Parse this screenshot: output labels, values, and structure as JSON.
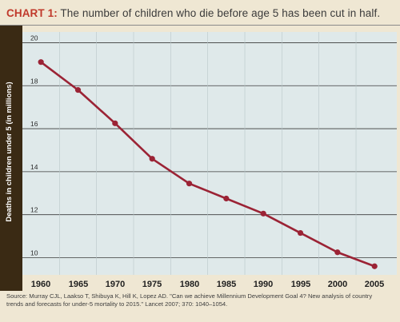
{
  "title": {
    "lead": "CHART 1:",
    "text": "The number of children who die before age 5 has been cut in half."
  },
  "source": "Source: Murray CJL, Laakso T, Shibuya K, Hill K, Lopez AD. \"Can we achieve Millennium Development Goal 4? New analysis of country trends and forecasts for under-5 mortality to 2015.\" Lancet 2007; 370: 1040–1054.",
  "colors": {
    "background": "#efe7d3",
    "plot_background": "#dfe9ea",
    "axis_band": "#3a2a14",
    "line": "#9b2335",
    "title_accent": "#c0392b"
  },
  "chart_data": {
    "type": "line",
    "title": "",
    "xlabel": "",
    "ylabel": "Deaths in children under 5 (in millions)",
    "x": [
      1960,
      1965,
      1970,
      1975,
      1980,
      1985,
      1990,
      1995,
      2000,
      2005
    ],
    "series": [
      {
        "values": [
          19.1,
          17.8,
          16.25,
          14.6,
          13.45,
          12.75,
          12.05,
          11.15,
          10.25,
          9.6
        ]
      }
    ],
    "x_ticks": [
      "1960",
      "1965",
      "1970",
      "1975",
      "1980",
      "1985",
      "1990",
      "1995",
      "2000",
      "2005"
    ],
    "y_ticks": [
      "10",
      "12",
      "14",
      "16",
      "18",
      "20"
    ],
    "ylim": [
      9.2,
      20.5
    ],
    "xlim": [
      1957.5,
      2008
    ],
    "grid": "horizontal"
  }
}
